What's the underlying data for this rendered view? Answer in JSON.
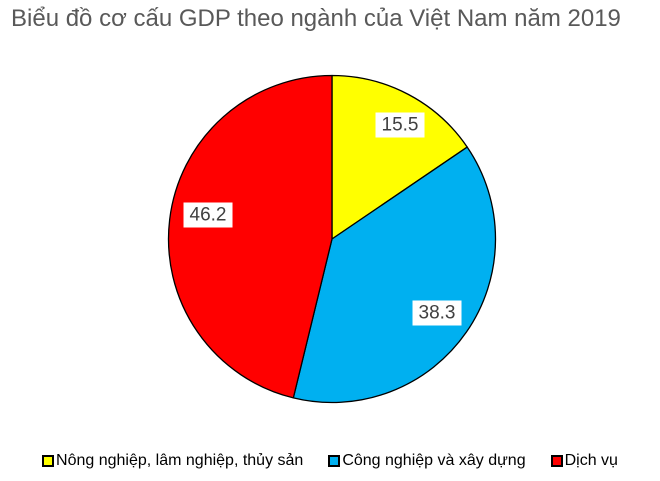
{
  "chart_data": {
    "type": "pie",
    "title": "Biểu đồ cơ cấu GDP theo ngành của Việt Nam năm 2019",
    "categories": [
      "Nông nghiệp, lâm nghiệp, thủy sản",
      "Công nghiệp và xây dựng",
      "Dịch vụ"
    ],
    "values": [
      15.5,
      38.3,
      46.2
    ],
    "colors": [
      "#FFFF00",
      "#00B0F0",
      "#FF0000"
    ],
    "border_color": "#000000",
    "start_angle": "top",
    "direction": "clockwise",
    "legend_position": "bottom",
    "title_color": "#595959",
    "label_text_color": "#404040",
    "label_bg": "#FFFFFF"
  }
}
